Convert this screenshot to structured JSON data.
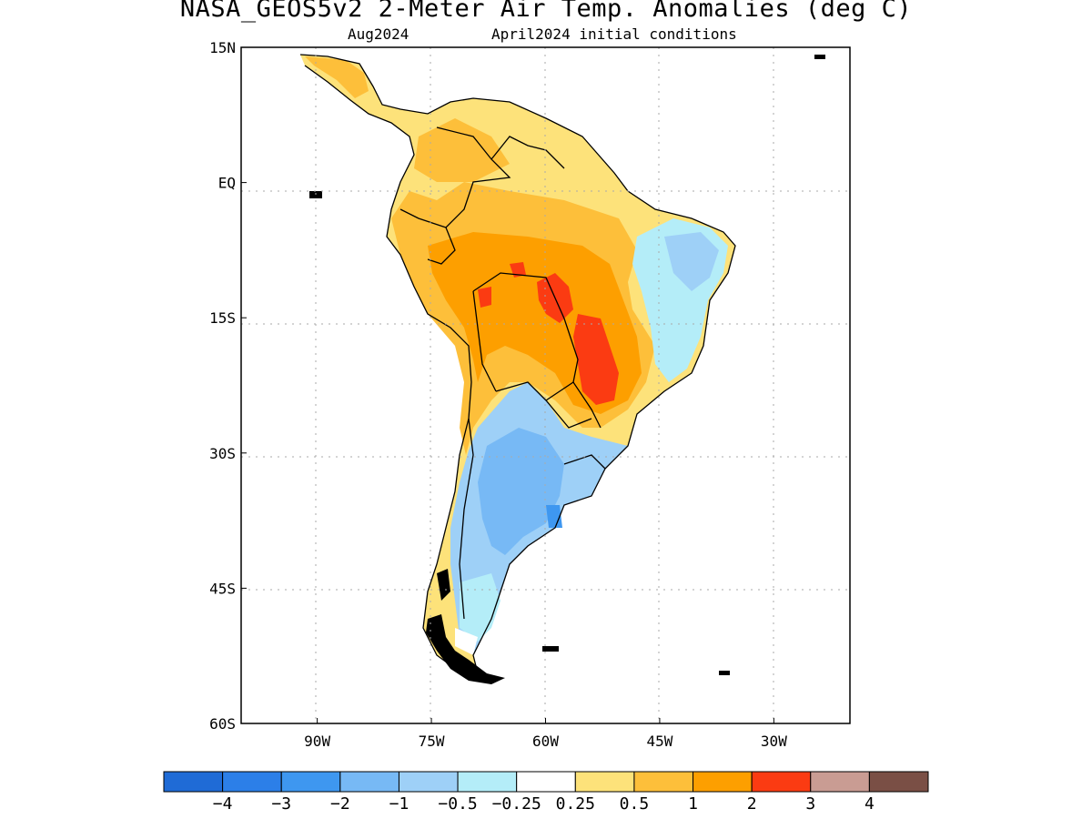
{
  "header": {
    "title": "NASA_GEOS5v2 2-Meter Air Temp. Anomalies (deg C)",
    "subtitle_left": "Aug2024",
    "subtitle_right": "April2024 initial conditions"
  },
  "axes": {
    "lat_labels": [
      "15N",
      "EQ",
      "15S",
      "30S",
      "45S",
      "60S"
    ],
    "lat_values": [
      15,
      0,
      -15,
      -30,
      -45,
      -60
    ],
    "lon_labels": [
      "90W",
      "75W",
      "60W",
      "45W",
      "30W"
    ],
    "lon_values": [
      -90,
      -75,
      -60,
      -45,
      -30
    ],
    "lat_range": [
      -60,
      15
    ],
    "lon_range": [
      -100,
      -20
    ],
    "grid": "dotted"
  },
  "colorbar": {
    "colors": [
      "#1f6bd6",
      "#2c7fe8",
      "#3e97f0",
      "#77b9f5",
      "#9ed0f7",
      "#b4edf8",
      "#ffffff",
      "#fde27a",
      "#fdbf3a",
      "#fd9f00",
      "#fb3b12",
      "#c99c93",
      "#7a4f45"
    ],
    "labels": [
      "−4",
      "−3",
      "−2",
      "−1",
      "−0.5",
      "−0.25",
      "0.25",
      "0.5",
      "1",
      "2",
      "3",
      "4"
    ]
  }
}
